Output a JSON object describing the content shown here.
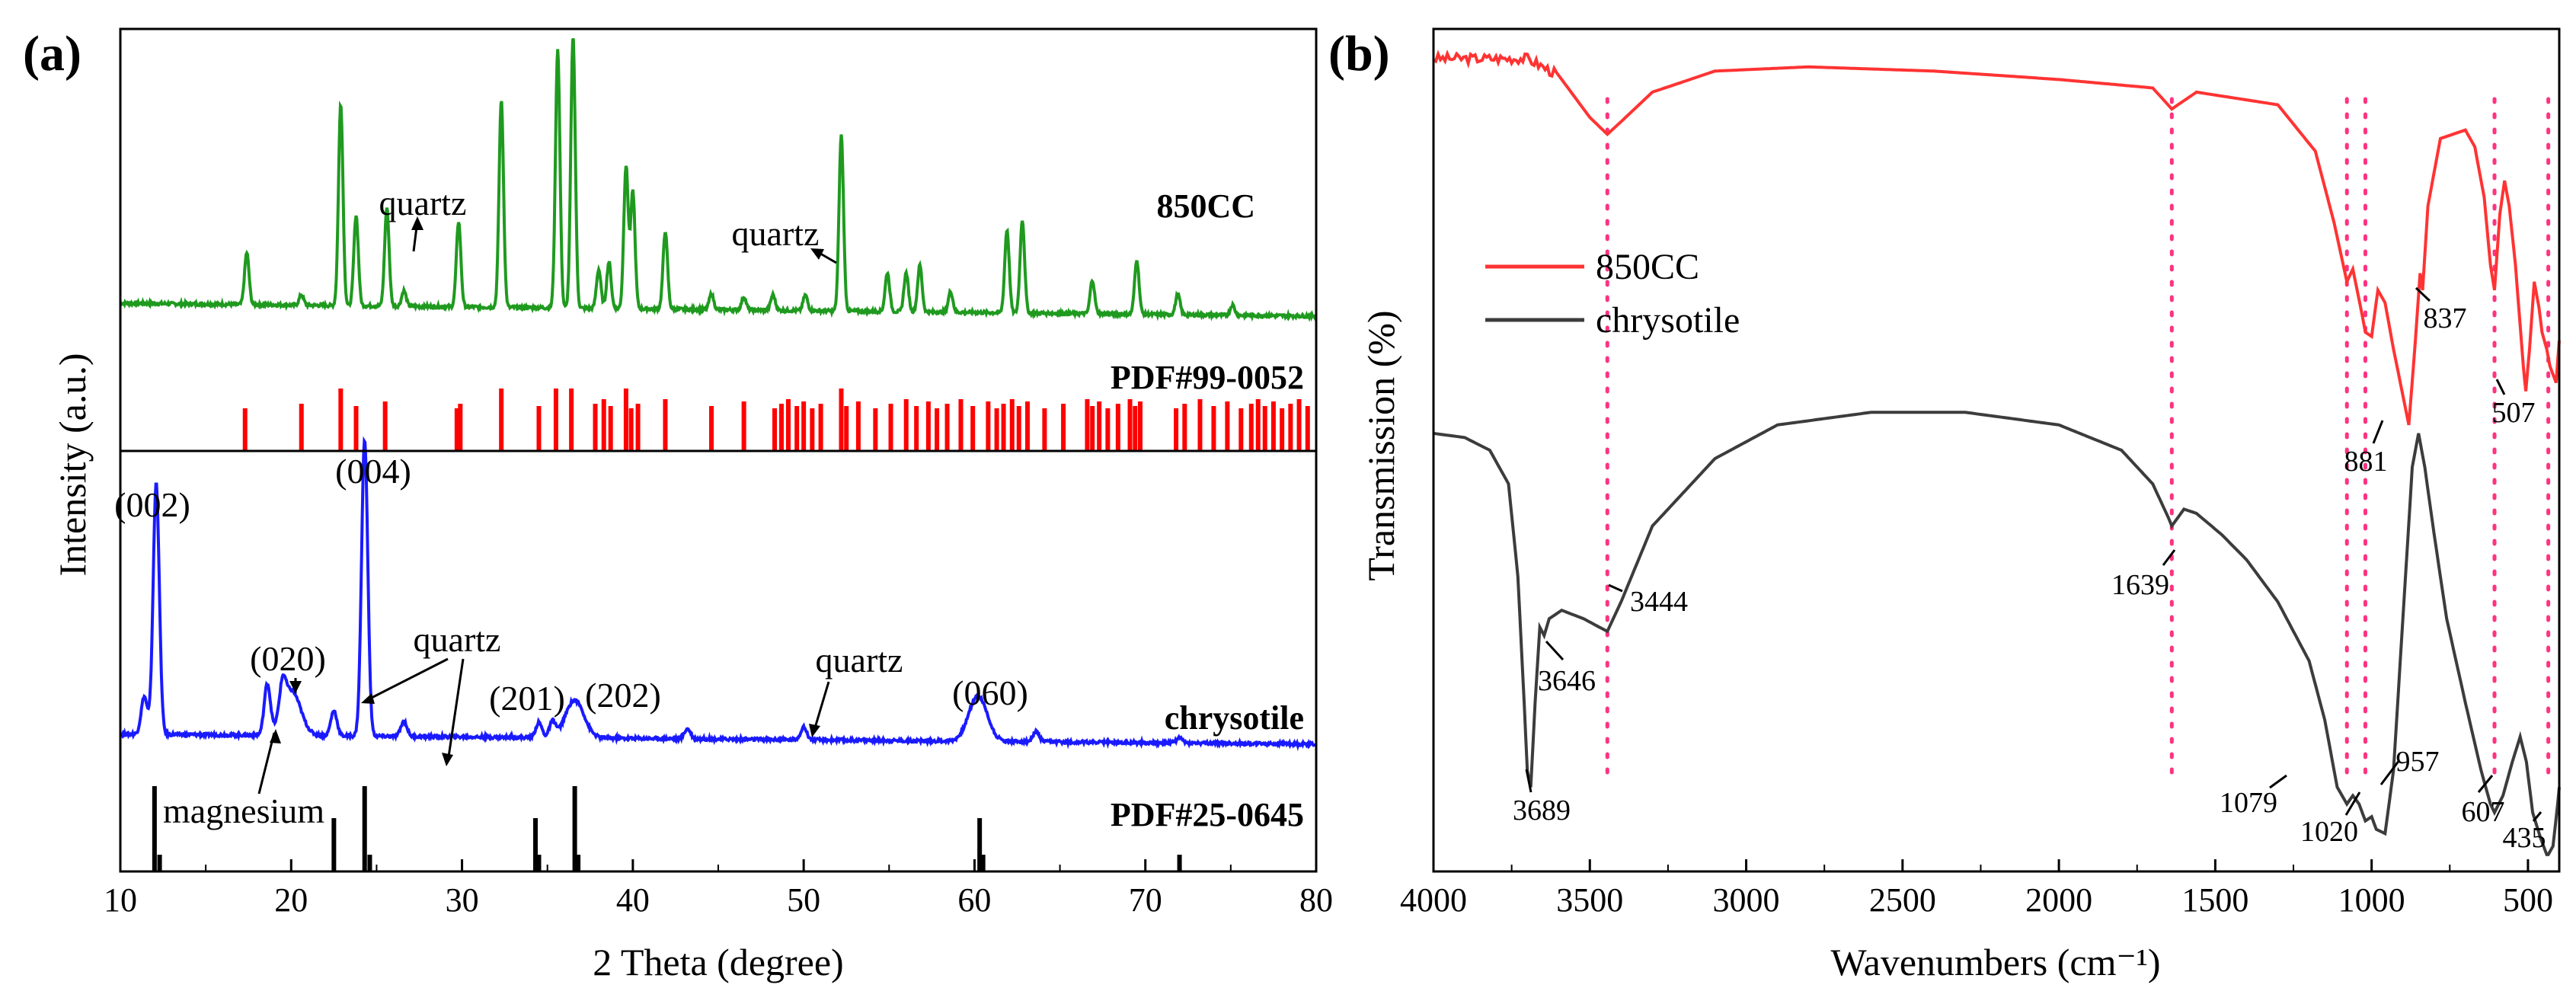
{
  "panels": {
    "a": {
      "label": "(a)",
      "xlabel": "2 Theta (degree)",
      "ylabel": "Intensity (a.u.)",
      "ticks": [
        "10",
        "20",
        "30",
        "40",
        "50",
        "60",
        "70",
        "80"
      ],
      "trace_labels": {
        "top": "850CC",
        "bottom": "chrysotile"
      },
      "reference_labels": {
        "top": "PDF#99-0052",
        "bottom": "PDF#25-0645"
      },
      "annotations": {
        "quartz_top_1": "quartz",
        "quartz_top_2": "quartz",
        "p002": "(002)",
        "p004": "(004)",
        "p020": "(020)",
        "quartz_b1": "quartz",
        "p201": "(201)",
        "p202": "(202)",
        "quartz_b2": "quartz",
        "p060": "(060)",
        "magnesium": "magnesium"
      }
    },
    "b": {
      "label": "(b)",
      "xlabel": "Wavenumbers (cm⁻¹)",
      "ylabel": "Transmission (%)",
      "ticks": [
        "4000",
        "3500",
        "3000",
        "2500",
        "2000",
        "1500",
        "1000",
        "500"
      ],
      "legend": [
        "850CC",
        "chrysotile"
      ],
      "peak_labels": {
        "p3444": "3444",
        "p3646": "3646",
        "p3689": "3689",
        "p1639": "1639",
        "p1079": "1079",
        "p1020": "1020",
        "p957": "957",
        "p881": "881",
        "p837": "837",
        "p607": "607",
        "p507": "507",
        "p435": "435"
      }
    }
  },
  "colors": {
    "trace_850cc_xrd": "#1f9a1f",
    "trace_chrysotile_xrd": "#1a1aff",
    "ref_pdf_99_0052": "#ff0000",
    "ref_pdf_25_0645": "#000000",
    "ftir_850cc": "#ff3333",
    "ftir_chrysotile": "#3c3c3c",
    "guide_lines": "#ff3380"
  },
  "chart_data": [
    {
      "type": "line",
      "panel": "a",
      "xlabel": "2 Theta (degree)",
      "ylabel": "Intensity (a.u.)",
      "xlim": [
        10,
        80
      ],
      "xticks": [
        10,
        20,
        30,
        40,
        50,
        60,
        70,
        80
      ],
      "grid": false,
      "series": [
        {
          "name": "850CC",
          "baseline": 0.1,
          "peaks": [
            [
              17.4,
              0.2
            ],
            [
              20.6,
              0.04
            ],
            [
              22.9,
              0.78
            ],
            [
              23.8,
              0.35
            ],
            [
              25.6,
              0.38
            ],
            [
              26.6,
              0.06
            ],
            [
              29.8,
              0.33
            ],
            [
              32.3,
              0.8
            ],
            [
              35.6,
              1.0
            ],
            [
              36.5,
              1.05
            ],
            [
              38.0,
              0.15
            ],
            [
              38.6,
              0.18
            ],
            [
              39.6,
              0.55
            ],
            [
              40.0,
              0.45
            ],
            [
              41.9,
              0.3
            ],
            [
              44.6,
              0.06
            ],
            [
              46.5,
              0.05
            ],
            [
              48.2,
              0.06
            ],
            [
              50.1,
              0.06
            ],
            [
              52.2,
              0.68
            ],
            [
              54.9,
              0.15
            ],
            [
              56.0,
              0.15
            ],
            [
              56.8,
              0.18
            ],
            [
              58.6,
              0.08
            ],
            [
              61.9,
              0.32
            ],
            [
              62.8,
              0.36
            ],
            [
              66.9,
              0.13
            ],
            [
              69.5,
              0.21
            ],
            [
              71.9,
              0.08
            ],
            [
              75.1,
              0.04
            ]
          ]
        },
        {
          "name": "chrysotile",
          "baseline": 0.08,
          "peaks": [
            [
              11.4,
              0.15
            ],
            [
              12.1,
              1.0
            ],
            [
              18.6,
              0.2
            ],
            [
              19.5,
              0.12
            ],
            [
              20.0,
              0.18
            ],
            [
              22.5,
              0.1
            ],
            [
              24.3,
              1.18
            ],
            [
              26.6,
              0.06
            ],
            [
              34.5,
              0.06
            ],
            [
              35.3,
              0.06
            ],
            [
              36.6,
              0.15
            ],
            [
              43.2,
              0.04
            ],
            [
              50.0,
              0.05
            ],
            [
              60.2,
              0.18
            ],
            [
              63.6,
              0.04
            ],
            [
              72.0,
              0.02
            ]
          ]
        }
      ],
      "reference_sticks": [
        {
          "name": "PDF#99-0052",
          "positions": [
            17.3,
            20.6,
            22.9,
            23.8,
            25.5,
            29.7,
            29.9,
            32.3,
            34.5,
            35.5,
            36.4,
            37.8,
            38.3,
            38.7,
            39.6,
            39.9,
            40.3,
            41.9,
            44.6,
            46.5,
            48.3,
            48.7,
            49.1,
            49.6,
            50.0,
            50.5,
            51.0,
            52.2,
            52.5,
            53.2,
            54.2,
            55.1,
            56.0,
            56.6,
            57.3,
            57.8,
            58.4,
            59.2,
            59.9,
            60.8,
            61.3,
            61.7,
            62.2,
            62.6,
            63.1,
            64.1,
            65.2,
            66.6,
            66.9,
            67.3,
            67.8,
            68.4,
            69.1,
            69.4,
            69.7,
            71.8,
            72.3,
            73.2,
            74.0,
            74.8,
            75.6,
            76.2,
            76.6,
            77.0,
            77.5,
            78.0,
            78.5,
            79.0,
            79.5
          ]
        },
        {
          "name": "PDF#25-0645",
          "positions": [
            12.0,
            12.3,
            22.5,
            24.3,
            24.6,
            34.3,
            34.5,
            36.6,
            36.8,
            60.3,
            60.5,
            72.0
          ]
        }
      ]
    },
    {
      "type": "line",
      "panel": "b",
      "xlabel": "Wavenumbers (cm⁻¹)",
      "ylabel": "Transmission (%)",
      "xlim": [
        4000,
        400
      ],
      "xticks": [
        4000,
        3500,
        3000,
        2500,
        2000,
        1500,
        1000,
        500
      ],
      "legend_position": "upper-left",
      "grid": false,
      "guide_lines": [
        3444,
        1639,
        1079,
        1020,
        607,
        435
      ],
      "series": [
        {
          "name": "850CC",
          "points": [
            [
              4000,
              0.965
            ],
            [
              3800,
              0.965
            ],
            [
              3700,
              0.965
            ],
            [
              3600,
              0.945
            ],
            [
              3500,
              0.895
            ],
            [
              3444,
              0.875
            ],
            [
              3400,
              0.89
            ],
            [
              3300,
              0.925
            ],
            [
              3100,
              0.95
            ],
            [
              2800,
              0.955
            ],
            [
              2400,
              0.95
            ],
            [
              2000,
              0.94
            ],
            [
              1700,
              0.93
            ],
            [
              1639,
              0.905
            ],
            [
              1560,
              0.925
            ],
            [
              1300,
              0.91
            ],
            [
              1180,
              0.855
            ],
            [
              1120,
              0.77
            ],
            [
              1079,
              0.7
            ],
            [
              1060,
              0.715
            ],
            [
              1030,
              0.66
            ],
            [
              1020,
              0.64
            ],
            [
              1000,
              0.635
            ],
            [
              980,
              0.69
            ],
            [
              957,
              0.675
            ],
            [
              930,
              0.62
            ],
            [
              900,
              0.565
            ],
            [
              881,
              0.53
            ],
            [
              860,
              0.63
            ],
            [
              845,
              0.71
            ],
            [
              837,
              0.69
            ],
            [
              820,
              0.79
            ],
            [
              780,
              0.87
            ],
            [
              700,
              0.88
            ],
            [
              670,
              0.86
            ],
            [
              640,
              0.8
            ],
            [
              620,
              0.72
            ],
            [
              607,
              0.69
            ],
            [
              590,
              0.78
            ],
            [
              575,
              0.82
            ],
            [
              560,
              0.79
            ],
            [
              540,
              0.72
            ],
            [
              515,
              0.6
            ],
            [
              507,
              0.57
            ],
            [
              495,
              0.62
            ],
            [
              480,
              0.7
            ],
            [
              465,
              0.67
            ],
            [
              455,
              0.64
            ],
            [
              440,
              0.62
            ],
            [
              430,
              0.6
            ],
            [
              410,
              0.58
            ],
            [
              400,
              0.63
            ]
          ]
        },
        {
          "name": "chrysotile",
          "points": [
            [
              4000,
              0.52
            ],
            [
              3900,
              0.515
            ],
            [
              3820,
              0.5
            ],
            [
              3760,
              0.46
            ],
            [
              3730,
              0.35
            ],
            [
              3710,
              0.2
            ],
            [
              3700,
              0.12
            ],
            [
              3689,
              0.1
            ],
            [
              3675,
              0.2
            ],
            [
              3660,
              0.29
            ],
            [
              3646,
              0.28
            ],
            [
              3630,
              0.3
            ],
            [
              3590,
              0.31
            ],
            [
              3520,
              0.3
            ],
            [
              3470,
              0.29
            ],
            [
              3444,
              0.285
            ],
            [
              3400,
              0.32
            ],
            [
              3300,
              0.41
            ],
            [
              3100,
              0.49
            ],
            [
              2900,
              0.53
            ],
            [
              2600,
              0.545
            ],
            [
              2300,
              0.545
            ],
            [
              2000,
              0.53
            ],
            [
              1800,
              0.5
            ],
            [
              1700,
              0.46
            ],
            [
              1650,
              0.42
            ],
            [
              1639,
              0.41
            ],
            [
              1600,
              0.43
            ],
            [
              1560,
              0.425
            ],
            [
              1480,
              0.4
            ],
            [
              1400,
              0.37
            ],
            [
              1300,
              0.32
            ],
            [
              1200,
              0.25
            ],
            [
              1150,
              0.18
            ],
            [
              1110,
              0.1
            ],
            [
              1079,
              0.08
            ],
            [
              1060,
              0.09
            ],
            [
              1040,
              0.08
            ],
            [
              1020,
              0.06
            ],
            [
              1000,
              0.065
            ],
            [
              985,
              0.05
            ],
            [
              957,
              0.045
            ],
            [
              930,
              0.12
            ],
            [
              900,
              0.3
            ],
            [
              870,
              0.48
            ],
            [
              850,
              0.52
            ],
            [
              830,
              0.48
            ],
            [
              800,
              0.4
            ],
            [
              760,
              0.3
            ],
            [
              700,
              0.2
            ],
            [
              650,
              0.12
            ],
            [
              620,
              0.08
            ],
            [
              607,
              0.07
            ],
            [
              580,
              0.09
            ],
            [
              550,
              0.13
            ],
            [
              525,
              0.16
            ],
            [
              505,
              0.13
            ],
            [
              485,
              0.07
            ],
            [
              460,
              0.04
            ],
            [
              440,
              0.02
            ],
            [
              435,
              0.02
            ],
            [
              420,
              0.03
            ],
            [
              405,
              0.08
            ],
            [
              400,
              0.1
            ]
          ]
        }
      ]
    }
  ]
}
